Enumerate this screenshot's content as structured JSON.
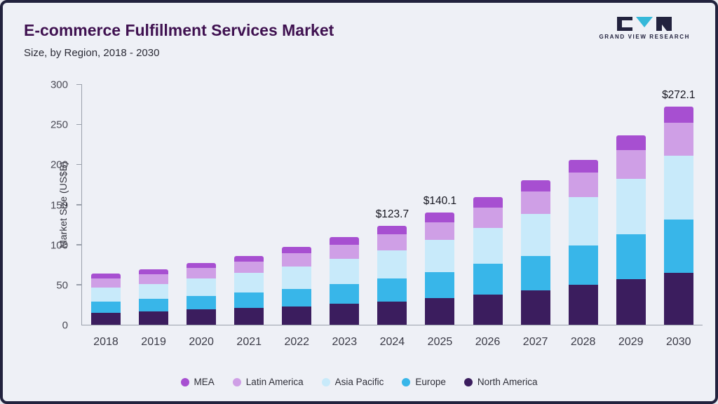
{
  "page": {
    "title": "E-commerce Fulfillment Services Market",
    "subtitle": "Size, by Region, 2018 - 2030"
  },
  "logo": {
    "text": "GRAND VIEW RESEARCH",
    "dark_color": "#22223e",
    "accent_color": "#35b8d9"
  },
  "chart_data": {
    "type": "bar",
    "stacked": true,
    "title": "E-commerce Fulfillment Services Market Size, by Region, 2018 - 2030",
    "ylabel": "Market Size (US$B)",
    "ylim": [
      0,
      300
    ],
    "yticks": [
      0,
      50,
      100,
      150,
      200,
      250,
      300
    ],
    "grid": false,
    "legend_position": "bottom",
    "categories": [
      "2018",
      "2019",
      "2020",
      "2021",
      "2022",
      "2023",
      "2024",
      "2025",
      "2026",
      "2027",
      "2028",
      "2029",
      "2030"
    ],
    "series": [
      {
        "name": "North America",
        "color": "#3b1d5e",
        "values": [
          15,
          17,
          19,
          21,
          23,
          26,
          29,
          33,
          38,
          43,
          50,
          57,
          65
        ]
      },
      {
        "name": "Europe",
        "color": "#38b6e9",
        "values": [
          14,
          15,
          17,
          19,
          22,
          25,
          29,
          33,
          38,
          43,
          49,
          56,
          66
        ]
      },
      {
        "name": "Asia Pacific",
        "color": "#c8eafa",
        "values": [
          17,
          19,
          22,
          25,
          28,
          31,
          35,
          40,
          45,
          52,
          60,
          69,
          80
        ]
      },
      {
        "name": "Latin America",
        "color": "#cf9fe6",
        "values": [
          12,
          12,
          13,
          14,
          16,
          18,
          20,
          22,
          25,
          28,
          31,
          36,
          41
        ]
      },
      {
        "name": "MEA",
        "color": "#a74fd1",
        "values": [
          6,
          6,
          6,
          7,
          8,
          9,
          10.7,
          12.1,
          13,
          14,
          16,
          18,
          20.1
        ]
      }
    ],
    "totals_shown": [
      {
        "category": "2024",
        "text": "$123.7"
      },
      {
        "category": "2025",
        "text": "$140.1"
      },
      {
        "category": "2030",
        "text": "$272.1"
      }
    ],
    "legend": [
      "MEA",
      "Latin America",
      "Asia Pacific",
      "Europe",
      "North America"
    ]
  }
}
